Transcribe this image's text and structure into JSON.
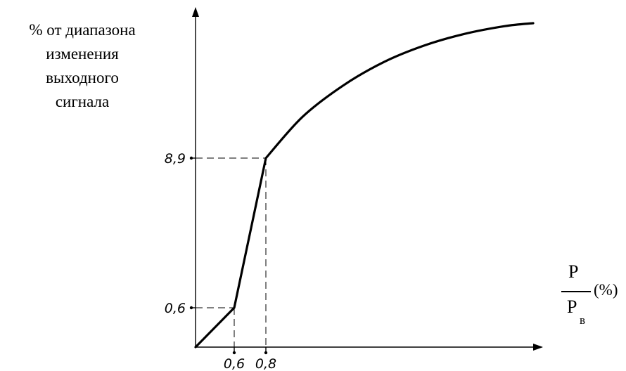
{
  "chart_data": {
    "type": "line",
    "ylabel_lines": [
      "% от диапазона",
      "изменения",
      "выходного",
      "сигнала"
    ],
    "xlabel": {
      "numerator": "P",
      "denominator": "P",
      "denominator_subscript": "в",
      "unit": "(%)"
    },
    "x_ticks": [
      {
        "value": 0.6,
        "label": "0,6"
      },
      {
        "value": 0.8,
        "label": "0,8"
      }
    ],
    "y_ticks": [
      {
        "value": 0.6,
        "label": "0,6"
      },
      {
        "value": 8.9,
        "label": "8,9"
      }
    ],
    "series": [
      {
        "points": [
          {
            "x": 0.0,
            "y": 0.0
          },
          {
            "x": 0.6,
            "y": 0.6
          },
          {
            "x": 0.8,
            "y": 8.9
          },
          {
            "x": 1.25,
            "y": 11.0
          },
          {
            "x": 1.75,
            "y": 12.6
          },
          {
            "x": 2.25,
            "y": 13.8
          },
          {
            "x": 2.75,
            "y": 14.65
          },
          {
            "x": 3.25,
            "y": 15.25
          },
          {
            "x": 3.75,
            "y": 15.65
          },
          {
            "x": 4.1,
            "y": 15.8
          }
        ]
      }
    ],
    "grid": false,
    "reference_lines": "dashed lines from the break points to both axes"
  },
  "colors": {
    "line": "#000000",
    "axis": "#000000",
    "reference": "#000000"
  }
}
